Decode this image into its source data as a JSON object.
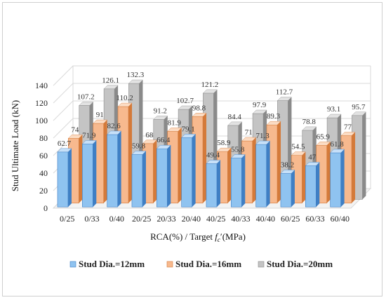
{
  "chart_data": {
    "type": "bar",
    "style": "3d-clustered-column",
    "categories": [
      "0/25",
      "0/33",
      "0/40",
      "20/25",
      "20/33",
      "20/40",
      "40/25",
      "40/33",
      "40/40",
      "60/25",
      "60/33",
      "60/40"
    ],
    "series": [
      {
        "name": "Stud Dia.=12mm",
        "values": [
          62.7,
          71.9,
          82.6,
          59.8,
          66.4,
          79.1,
          49.4,
          55.8,
          71.3,
          38.2,
          47,
          61.8
        ],
        "color": "#8fc3f0",
        "side": "#3f7fc4",
        "top": "#c7e0f8"
      },
      {
        "name": "Stud Dia.=16mm",
        "values": [
          74,
          91,
          110.2,
          68,
          81.9,
          98.8,
          58.9,
          71,
          89.3,
          54.5,
          65.9,
          77
        ],
        "color": "#f7b98e",
        "side": "#d47a3a",
        "top": "#fbdcc4"
      },
      {
        "name": "Stud Dia.=20mm",
        "values": [
          107.2,
          126.1,
          132.3,
          91.2,
          102.7,
          121.2,
          84.4,
          97.9,
          112.7,
          78.8,
          93.1,
          95.7
        ],
        "color": "#c4c4c4",
        "side": "#8a8a8a",
        "top": "#e2e2e2"
      }
    ],
    "xlabel": "RCA(%) / Target f′c(MPa)",
    "ylabel": "Stud Ultimate Load (kN)",
    "ylim": [
      0,
      140
    ],
    "yticks": [
      0,
      20,
      40,
      60,
      80,
      100,
      120,
      140
    ],
    "grid": true,
    "legend": "bottom"
  },
  "axis_title": {
    "x_main": "RCA(%) / Target ",
    "x_symbol": "f",
    "x_sub": "c",
    "x_prime": "′",
    "x_units": "(MPa)",
    "y": "Stud Ultimate Load (kN)"
  }
}
